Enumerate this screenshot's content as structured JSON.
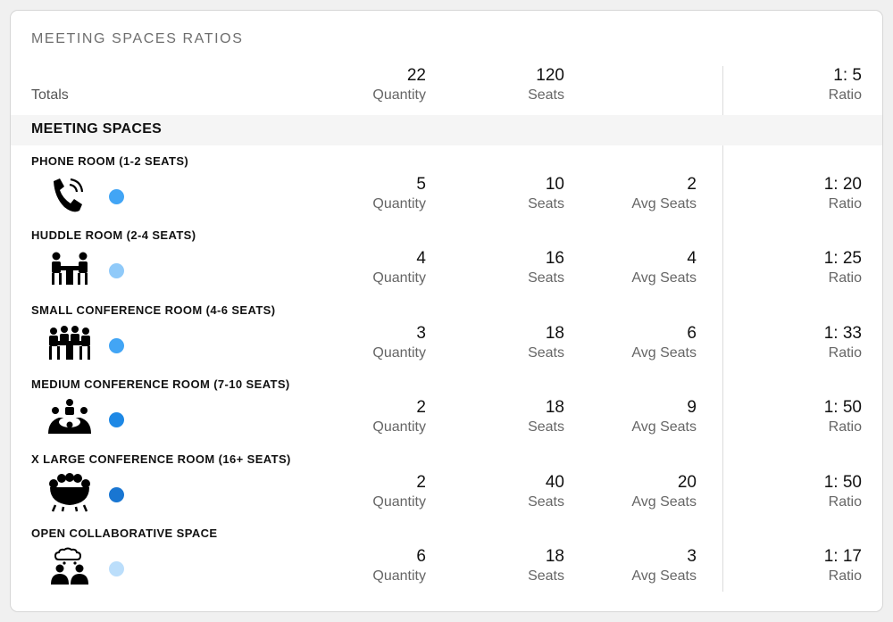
{
  "title": "MEETING SPACES RATIOS",
  "totals": {
    "label": "Totals",
    "quantity": "22",
    "quantity_label": "Quantity",
    "seats": "120",
    "seats_label": "Seats",
    "ratio": "1: 5",
    "ratio_label": "Ratio"
  },
  "section_title": "MEETING SPACES",
  "rooms": [
    {
      "name": "PHONE ROOM (1-2 SEATS)",
      "icon": "phone-icon",
      "color": "#42a5f5",
      "quantity": "5",
      "quantity_label": "Quantity",
      "seats": "10",
      "seats_label": "Seats",
      "avg": "2",
      "avg_label": "Avg Seats",
      "ratio": "1: 20",
      "ratio_label": "Ratio"
    },
    {
      "name": "HUDDLE ROOM (2-4 SEATS)",
      "icon": "huddle-room-icon",
      "color": "#90caf9",
      "quantity": "4",
      "quantity_label": "Quantity",
      "seats": "16",
      "seats_label": "Seats",
      "avg": "4",
      "avg_label": "Avg Seats",
      "ratio": "1: 25",
      "ratio_label": "Ratio"
    },
    {
      "name": "SMALL CONFERENCE ROOM (4-6 SEATS)",
      "icon": "small-conference-icon",
      "color": "#42a5f5",
      "quantity": "3",
      "quantity_label": "Quantity",
      "seats": "18",
      "seats_label": "Seats",
      "avg": "6",
      "avg_label": "Avg Seats",
      "ratio": "1: 33",
      "ratio_label": "Ratio"
    },
    {
      "name": "MEDIUM CONFERENCE ROOM (7-10 SEATS)",
      "icon": "medium-conference-icon",
      "color": "#1e88e5",
      "quantity": "2",
      "quantity_label": "Quantity",
      "seats": "18",
      "seats_label": "Seats",
      "avg": "9",
      "avg_label": "Avg Seats",
      "ratio": "1: 50",
      "ratio_label": "Ratio"
    },
    {
      "name": "X LARGE CONFERENCE ROOM (16+ SEATS)",
      "icon": "large-conference-icon",
      "color": "#1976d2",
      "quantity": "2",
      "quantity_label": "Quantity",
      "seats": "40",
      "seats_label": "Seats",
      "avg": "20",
      "avg_label": "Avg Seats",
      "ratio": "1: 50",
      "ratio_label": "Ratio"
    },
    {
      "name": "OPEN COLLABORATIVE SPACE",
      "icon": "collaborative-space-icon",
      "color": "#bbdefb",
      "quantity": "6",
      "quantity_label": "Quantity",
      "seats": "18",
      "seats_label": "Seats",
      "avg": "3",
      "avg_label": "Avg Seats",
      "ratio": "1: 17",
      "ratio_label": "Ratio"
    }
  ]
}
